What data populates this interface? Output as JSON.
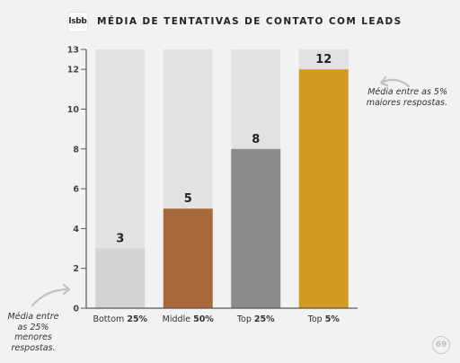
{
  "header": {
    "logo_text": "lsbb",
    "title": "MÉDIA DE TENTATIVAS DE CONTATO COM LEADS"
  },
  "annotations": {
    "top": "Média entre as 5% maiores respostas.",
    "bottom": "Média entre as 25% menores respostas."
  },
  "page_badge": "69",
  "chart_data": {
    "type": "bar",
    "title": "MÉDIA DE TENTATIVAS DE CONTATO COM LEADS",
    "xlabel": "",
    "ylabel": "",
    "ylim": [
      0,
      13
    ],
    "yticks": [
      0,
      2,
      4,
      6,
      8,
      10,
      12,
      13
    ],
    "grid": true,
    "categories": [
      {
        "prefix": "Bottom",
        "pct": "25%"
      },
      {
        "prefix": "Middle",
        "pct": "50%"
      },
      {
        "prefix": "Top",
        "pct": "25%"
      },
      {
        "prefix": "Top",
        "pct": "5%"
      }
    ],
    "values": [
      3,
      5,
      8,
      12
    ],
    "colors": [
      "#d3d3d3",
      "#a86a3c",
      "#8c8b89",
      "#d19a25"
    ],
    "background_bar_color": "#e2e2e2",
    "axis_color": "#555555"
  }
}
